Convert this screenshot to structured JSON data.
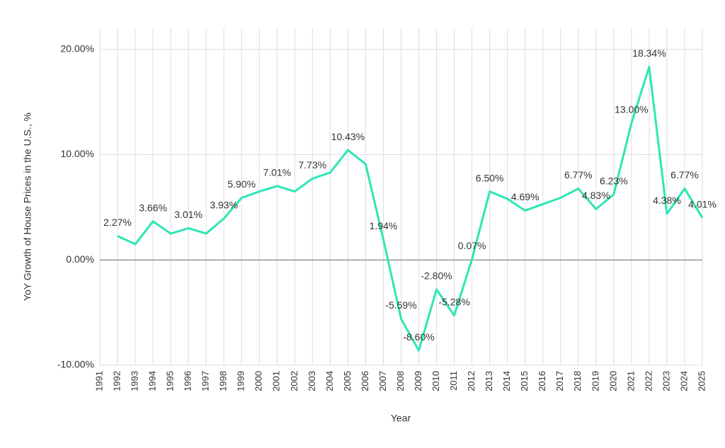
{
  "chart_data": {
    "type": "line",
    "x_label": "Year",
    "y_label": "YoY Growth of House Prices in the U.S., %",
    "categories": [
      "1991",
      "1992",
      "1993",
      "1994",
      "1995",
      "1996",
      "1997",
      "1998",
      "1999",
      "2000",
      "2001",
      "2002",
      "2003",
      "2004",
      "2005",
      "2006",
      "2007",
      "2008",
      "2009",
      "2010",
      "2011",
      "2012",
      "2013",
      "2014",
      "2015",
      "2016",
      "2017",
      "2018",
      "2019",
      "2020",
      "2021",
      "2022",
      "2023",
      "2024",
      "2025"
    ],
    "values": [
      null,
      2.27,
      1.5,
      3.66,
      2.5,
      3.01,
      2.5,
      3.93,
      5.9,
      6.5,
      7.01,
      6.5,
      7.73,
      8.3,
      10.43,
      9.1,
      1.94,
      -5.59,
      -8.6,
      -2.8,
      -5.28,
      0.07,
      6.5,
      5.8,
      4.69,
      5.3,
      5.9,
      6.77,
      4.83,
      6.23,
      13.0,
      18.34,
      4.38,
      6.77,
      4.01
    ],
    "value_labels": [
      null,
      "2.27%",
      null,
      "3.66%",
      null,
      "3.01%",
      null,
      "3.93%",
      "5.90%",
      null,
      "7.01%",
      null,
      "7.73%",
      null,
      "10.43%",
      null,
      "1.94%",
      "-5.59%",
      "-8.60%",
      "-2.80%",
      "-5.28%",
      "0.07%",
      "6.50%",
      null,
      "4.69%",
      null,
      null,
      "6.77%",
      "4.83%",
      "6.23%",
      "13.00%",
      "18.34%",
      "4.38%",
      "6.77%",
      "4.01%"
    ],
    "color": "#2ee6b6",
    "ylim": [
      -10,
      22
    ],
    "yticks": [
      {
        "value": -10,
        "label": "-10.00%"
      },
      {
        "value": 0,
        "label": "0.00%"
      },
      {
        "value": 10,
        "label": "10.00%"
      },
      {
        "value": 20,
        "label": "20.00%"
      }
    ],
    "grid": true
  }
}
